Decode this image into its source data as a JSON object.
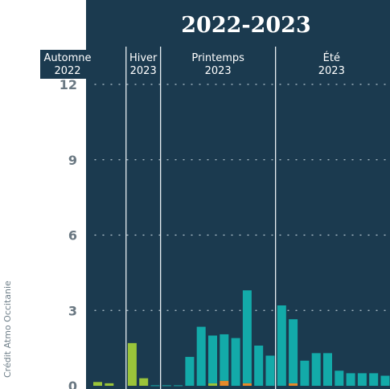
{
  "credit": "Crédit Atmo Occitanie",
  "colors": {
    "panel": "#1b3a4f",
    "teal": "#13aaa9",
    "lime": "#9ac43a",
    "orange": "#e58a2a",
    "tick_text": "#6a7882",
    "season_text": "#ffffff",
    "title_text": "#ffffff"
  },
  "chart_data": {
    "type": "bar",
    "title": "2022-2023",
    "ylim": [
      0,
      12
    ],
    "yticks": [
      "0",
      "3",
      "6",
      "9",
      "12"
    ],
    "grid": "dotted horizontal",
    "seasons": [
      {
        "name": "Automne",
        "year": "2022",
        "start": 0,
        "end": 2
      },
      {
        "name": "Hiver",
        "year": "2023",
        "start": 3,
        "end": 5
      },
      {
        "name": "Printemps",
        "year": "2023",
        "start": 6,
        "end": 15
      },
      {
        "name": "Été",
        "year": "2023",
        "start": 16,
        "end": 28
      }
    ],
    "series": [
      {
        "color": "lime",
        "values": [
          0.15,
          0.1,
          0.0,
          1.7,
          0.3,
          0,
          0,
          0,
          0,
          0,
          0.1,
          0,
          0,
          0,
          0,
          0,
          0,
          0,
          0,
          0,
          0,
          0,
          0,
          0,
          0,
          0,
          0,
          0,
          0
        ]
      },
      {
        "color": "orange",
        "values": [
          0,
          0,
          0,
          0,
          0,
          0,
          0,
          0,
          0,
          0,
          0,
          0.2,
          0,
          0.1,
          0,
          0,
          0,
          0.1,
          0,
          0,
          0,
          0,
          0,
          0,
          0,
          0,
          0,
          0,
          0
        ]
      },
      {
        "color": "teal",
        "values": [
          0,
          0,
          0,
          0,
          0,
          0.02,
          0.02,
          0.02,
          1.15,
          2.35,
          1.9,
          1.85,
          1.9,
          3.7,
          1.6,
          1.2,
          3.2,
          2.55,
          1.0,
          1.3,
          1.3,
          0.6,
          0.5,
          0.5,
          0.5,
          0.4,
          0.3,
          0.25,
          0
        ]
      }
    ]
  }
}
